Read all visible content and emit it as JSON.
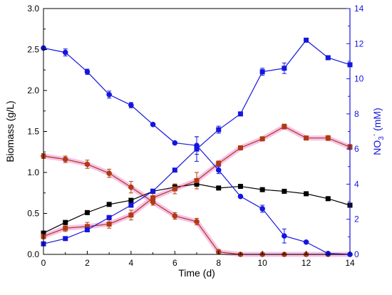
{
  "chart_data": {
    "type": "line",
    "x": [
      0,
      1,
      2,
      3,
      4,
      5,
      6,
      7,
      8,
      9,
      10,
      11,
      12,
      13,
      14
    ],
    "xlabel": "Time (d)",
    "ylabel": "Biomass (g/L)",
    "y2label_main": "NO",
    "y2label_sub": "3",
    "y2label_sup": "-",
    "y2label_unit": " (mM)",
    "xlim": [
      0,
      14
    ],
    "ylim": [
      0,
      3.0
    ],
    "y2lim": [
      0,
      14
    ],
    "x_ticks": [
      "0",
      "2",
      "4",
      "6",
      "8",
      "10",
      "12",
      "14"
    ],
    "y_ticks": [
      "0.0",
      "0.5",
      "1.0",
      "1.5",
      "2.0",
      "2.5",
      "3.0"
    ],
    "y2_ticks": [
      "0",
      "2",
      "4",
      "6",
      "8",
      "10",
      "12",
      "14"
    ],
    "grid": false,
    "series": [
      {
        "key": "black-squares",
        "axis": "left",
        "color": "#000000",
        "marker": "square",
        "values": [
          0.26,
          0.39,
          0.51,
          0.61,
          0.66,
          0.77,
          0.82,
          0.86,
          0.81,
          0.83,
          0.79,
          0.77,
          0.74,
          0.68,
          0.6
        ],
        "errors": [
          0.02,
          0.02,
          0.02,
          0.02,
          0.02,
          0.02,
          0.03,
          0.03,
          0.02,
          0.02,
          0.02,
          0.02,
          0.02,
          0.02,
          0.02
        ]
      },
      {
        "key": "red-squares",
        "axis": "left",
        "color": "#b03a12",
        "marker": "square",
        "values": [
          0.22,
          0.32,
          0.34,
          0.37,
          0.48,
          0.69,
          0.8,
          0.9,
          1.11,
          1.3,
          1.41,
          1.56,
          1.42,
          1.42,
          1.31
        ],
        "errors": [
          0.03,
          0.04,
          0.05,
          0.05,
          0.06,
          0.06,
          0.06,
          0.1,
          0.03,
          0.02,
          0.02,
          0.03,
          0.02,
          0.03,
          0.03
        ]
      },
      {
        "key": "red-circles",
        "axis": "left",
        "color": "#b03a12",
        "marker": "circle",
        "values": [
          1.2,
          1.16,
          1.1,
          0.99,
          0.82,
          0.64,
          0.47,
          0.4,
          0.03,
          0.0,
          0.0,
          0.0,
          0.0,
          0.0,
          0.0
        ],
        "errors": [
          0.03,
          0.04,
          0.05,
          0.05,
          0.07,
          0.04,
          0.04,
          0.04,
          0.03,
          0.0,
          0.0,
          0.0,
          0.0,
          0.0,
          0.0
        ]
      },
      {
        "key": "blue-circles",
        "axis": "right",
        "color": "#1515e0",
        "marker": "circle",
        "values": [
          11.75,
          11.5,
          10.4,
          9.1,
          8.5,
          7.4,
          6.35,
          6.2,
          4.8,
          3.3,
          2.6,
          1.05,
          0.7,
          0.05,
          0.0
        ],
        "errors": [
          0.1,
          0.2,
          0.15,
          0.2,
          0.15,
          0.0,
          0.0,
          0.5,
          0.2,
          0.0,
          0.2,
          0.4,
          0.0,
          0.0,
          0.0
        ]
      },
      {
        "key": "blue-squares",
        "axis": "right",
        "color": "#1515e0",
        "marker": "square",
        "values": [
          0.6,
          0.9,
          1.4,
          2.1,
          2.8,
          3.6,
          4.8,
          6.0,
          7.1,
          8.0,
          10.4,
          10.6,
          12.2,
          11.2,
          10.8
        ],
        "errors": [
          0.0,
          0.0,
          0.0,
          0.0,
          0.0,
          0.0,
          0.0,
          0.7,
          0.2,
          0.0,
          0.2,
          0.3,
          0.0,
          0.0,
          0.0
        ]
      }
    ]
  }
}
